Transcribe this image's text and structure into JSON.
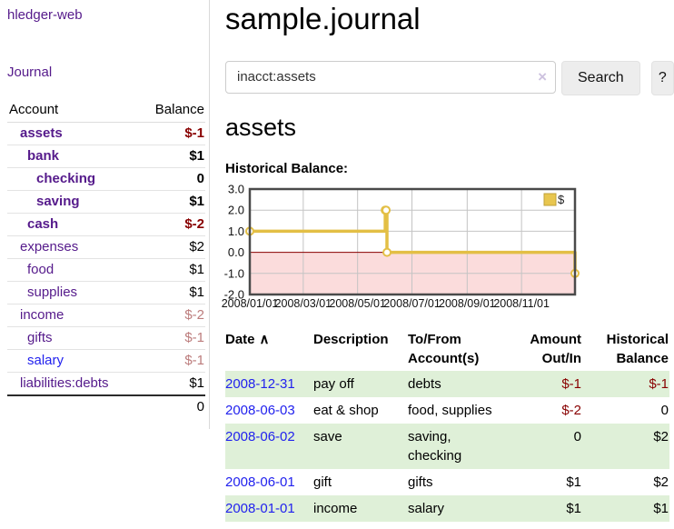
{
  "sidebar": {
    "brand": "hledger-web",
    "journal_link": "Journal",
    "accounts_table": {
      "account_header": "Account",
      "balance_header": "Balance",
      "rows": [
        {
          "name": "assets",
          "balance": "$-1",
          "level": 1,
          "bold": true,
          "balance_style": "negative"
        },
        {
          "name": "bank",
          "balance": "$1",
          "level": 2,
          "bold": true,
          "balance_style": "normal"
        },
        {
          "name": "checking",
          "balance": "0",
          "level": 3,
          "bold": true,
          "balance_style": "normal"
        },
        {
          "name": "saving",
          "balance": "$1",
          "level": 3,
          "bold": true,
          "balance_style": "normal"
        },
        {
          "name": "cash",
          "balance": "$-2",
          "level": 2,
          "bold": true,
          "balance_style": "negative"
        },
        {
          "name": "expenses",
          "balance": "$2",
          "level": 1,
          "bold": false,
          "balance_style": "normal"
        },
        {
          "name": "food",
          "balance": "$1",
          "level": 2,
          "bold": false,
          "balance_style": "normal"
        },
        {
          "name": "supplies",
          "balance": "$1",
          "level": 2,
          "bold": false,
          "balance_style": "normal"
        },
        {
          "name": "income",
          "balance": "$-2",
          "level": 1,
          "bold": false,
          "balance_style": "muted-negative"
        },
        {
          "name": "gifts",
          "balance": "$-1",
          "level": 2,
          "bold": false,
          "balance_style": "muted-negative"
        },
        {
          "name": "salary",
          "balance": "$-1",
          "level": 2,
          "bold": false,
          "balance_style": "muted-negative",
          "link_color": "blue"
        },
        {
          "name": "liabilities:debts",
          "balance": "$1",
          "level": 1,
          "bold": false,
          "balance_style": "normal"
        }
      ],
      "total": "0"
    }
  },
  "header": {
    "title": "sample.journal"
  },
  "search": {
    "value": "inacct:assets",
    "clear_icon": "×",
    "button_label": "Search",
    "help_label": "?"
  },
  "account_page": {
    "title": "assets",
    "chart_label": "Historical Balance:"
  },
  "chart_data": {
    "type": "line",
    "title": "Historical Balance",
    "step": true,
    "series": [
      {
        "name": "$",
        "points": [
          [
            "2008-01-01",
            1
          ],
          [
            "2008-06-01",
            2
          ],
          [
            "2008-06-02",
            2
          ],
          [
            "2008-06-03",
            0
          ],
          [
            "2008-12-31",
            -1
          ]
        ]
      }
    ],
    "x_ticks": [
      "2008/01/01",
      "2008/03/01",
      "2008/05/01",
      "2008/07/01",
      "2008/09/01",
      "2008/11/01"
    ],
    "y_ticks": [
      3.0,
      2.0,
      1.0,
      0.0,
      -1.0,
      -2.0
    ],
    "xlim": [
      "2008-01-01",
      "2008-12-31"
    ],
    "ylim": [
      -2,
      3
    ],
    "grid": true,
    "legend_position": "top-right",
    "negative_region_shaded": true,
    "colors": {
      "line": "#e3bf45",
      "marker_fill": "#ffffff",
      "negative_fill": "#fbdcdc",
      "zero_line": "#880000",
      "grid_line": "#c4c4c4",
      "border": "#4a4a4a",
      "legend_fill": "#e8c64f",
      "legend_border": "#bfa23a"
    }
  },
  "transactions": {
    "headers": {
      "date": "Date",
      "sort_icon": "∧",
      "description": "Description",
      "accounts": "To/From Account(s)",
      "amount": "Amount Out/In",
      "balance": "Historical Balance"
    },
    "rows": [
      {
        "date": "2008-12-31",
        "description": "pay off",
        "accounts": "debts",
        "amount": "$-1",
        "amount_negative": true,
        "balance": "$-1",
        "balance_negative": true
      },
      {
        "date": "2008-06-03",
        "description": "eat & shop",
        "accounts": "food, supplies",
        "amount": "$-2",
        "amount_negative": true,
        "balance": "0",
        "balance_negative": false
      },
      {
        "date": "2008-06-02",
        "description": "save",
        "accounts": "saving, checking",
        "amount": "0",
        "amount_negative": false,
        "balance": "$2",
        "balance_negative": false
      },
      {
        "date": "2008-06-01",
        "description": "gift",
        "accounts": "gifts",
        "amount": "$1",
        "amount_negative": false,
        "balance": "$2",
        "balance_negative": false
      },
      {
        "date": "2008-01-01",
        "description": "income",
        "accounts": "salary",
        "amount": "$1",
        "amount_negative": false,
        "balance": "$1",
        "balance_negative": false
      }
    ]
  }
}
